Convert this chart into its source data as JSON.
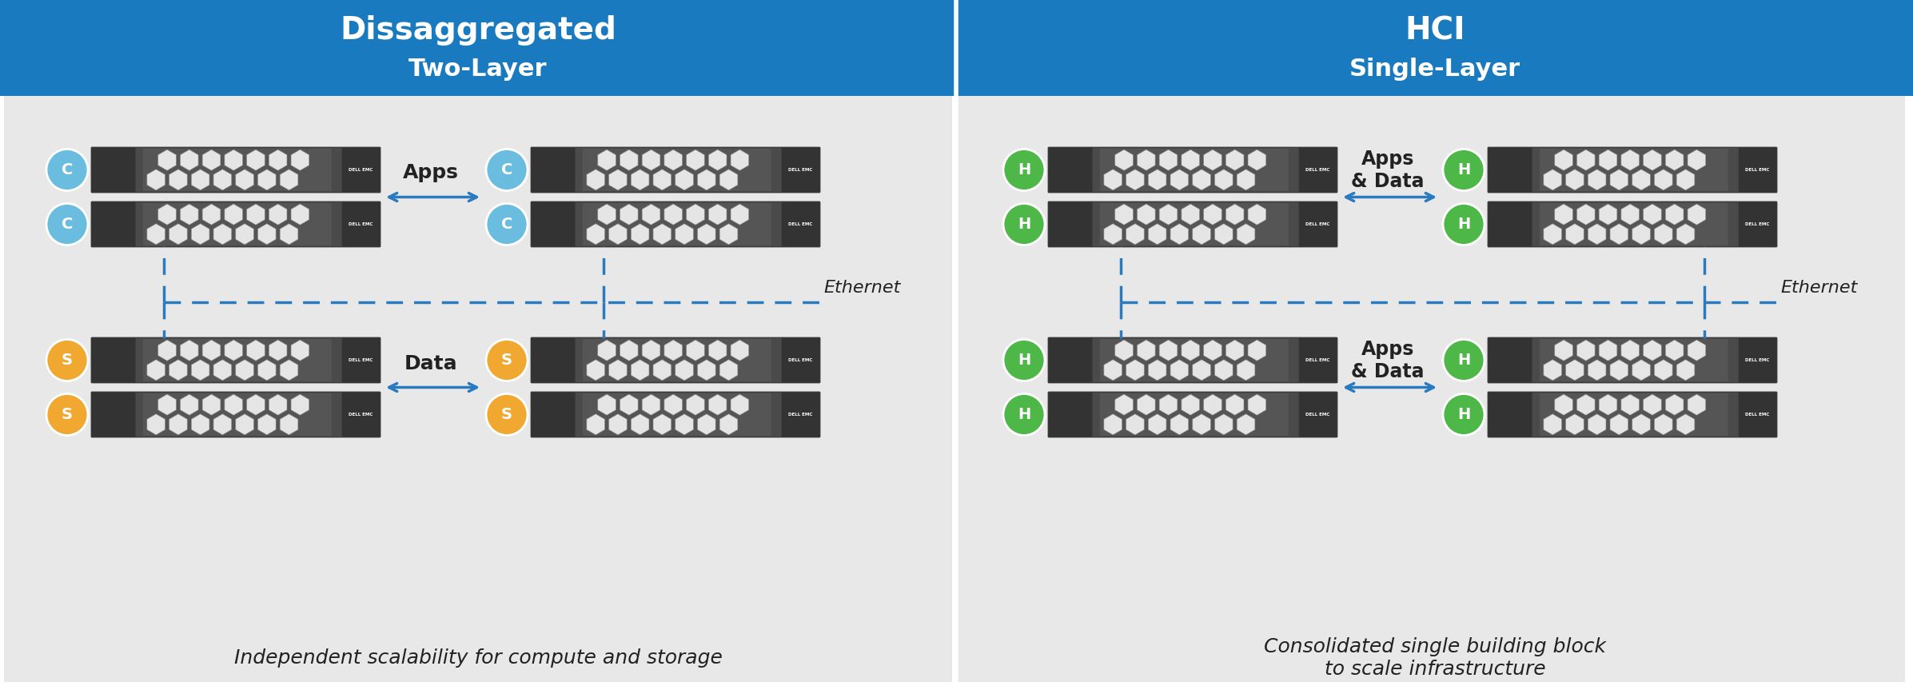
{
  "fig_width": 23.93,
  "fig_height": 8.58,
  "bg_color": "#e8e8e8",
  "header_color": "#1a7abf",
  "header_text_color": "#ffffff",
  "divider_color": "#ffffff",
  "server_dark": "#4a4a4a",
  "server_light": "#888888",
  "arrow_color": "#2a7abf",
  "dashed_color": "#2a7abf",
  "circle_C_color": "#6bbde0",
  "circle_S_color": "#f0a830",
  "circle_H_color": "#4db848",
  "left_title1": "Dissaggregated",
  "left_title2": "Two-Layer",
  "right_title1": "HCI",
  "right_title2": "Single-Layer",
  "left_caption": "Independent scalability for compute and storage",
  "right_caption": "Consolidated single building block\nto scale infrastructure",
  "label_apps": "Apps",
  "label_data": "Data",
  "label_apps_data": "Apps\n& Data",
  "label_ethernet": "Ethernet"
}
